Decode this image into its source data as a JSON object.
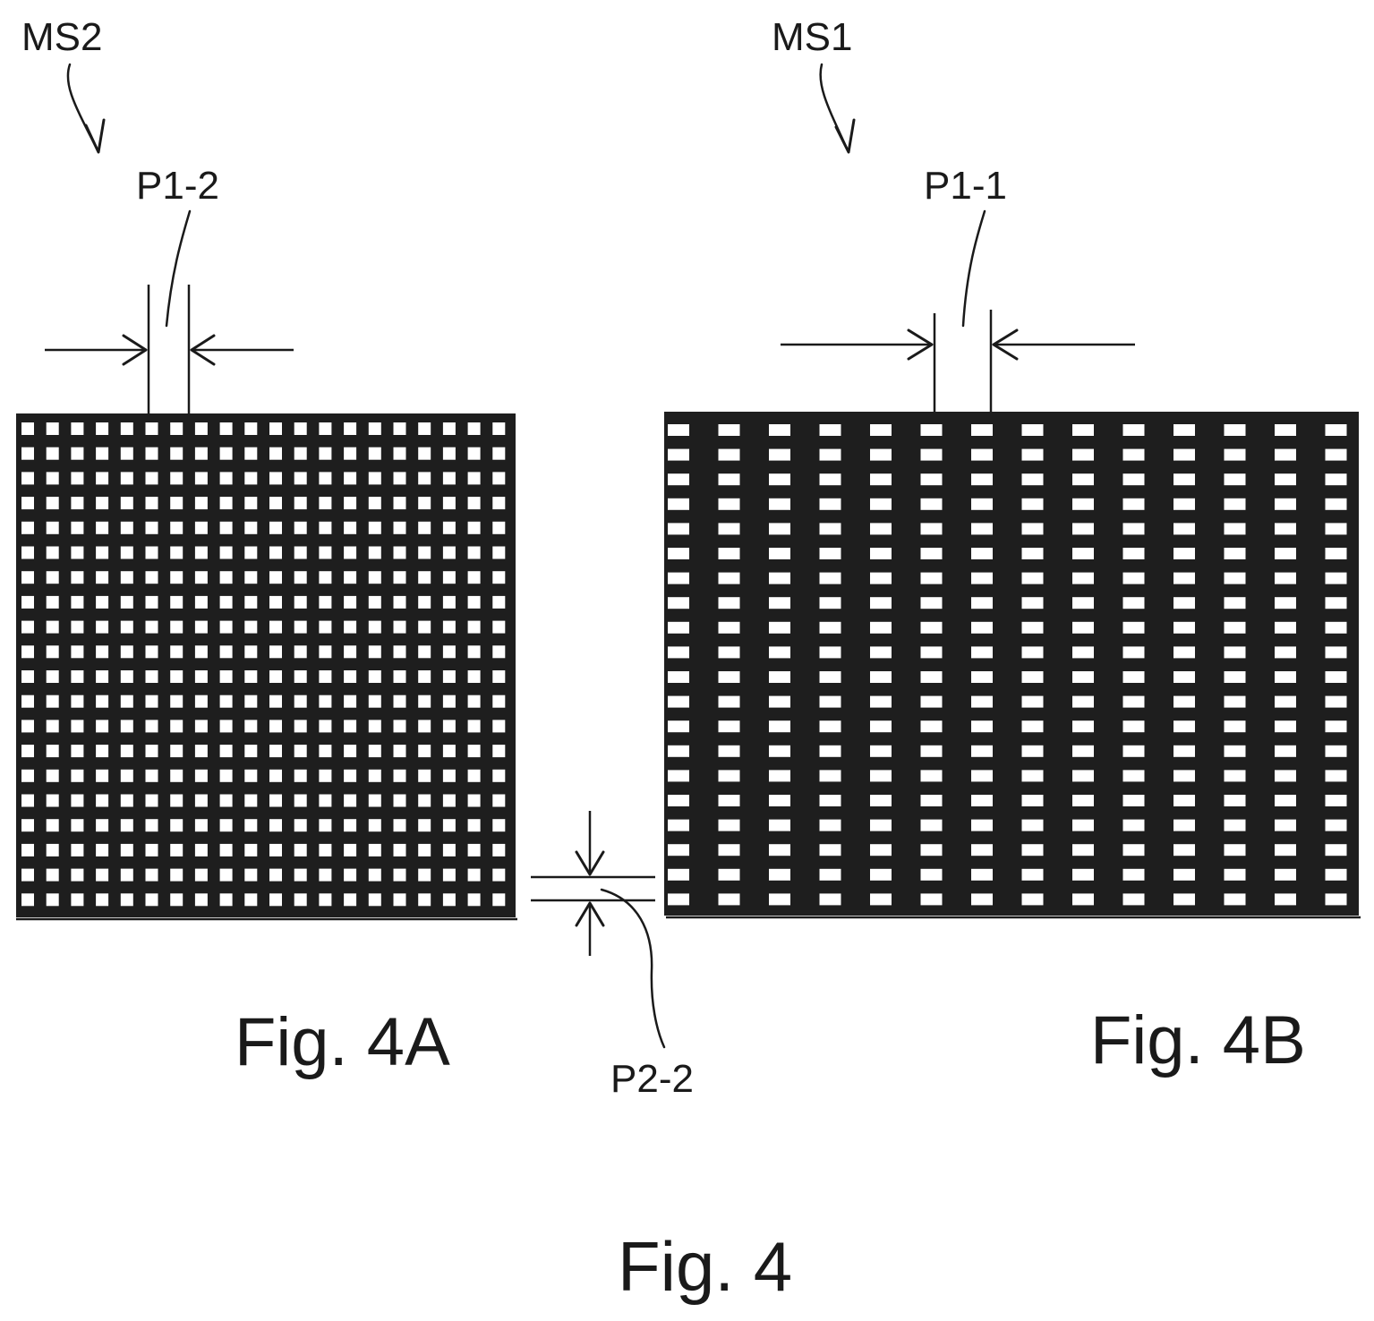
{
  "figure": {
    "title": "Fig. 4",
    "panels": [
      {
        "id": "A",
        "caption": "Fig. 4A",
        "mask_label": "MS2",
        "pitch_x_label": "P1-2",
        "pitch_y_label": "P2-2",
        "holes_x": 20,
        "holes_y": 20
      },
      {
        "id": "B",
        "caption": "Fig. 4B",
        "mask_label": "MS1",
        "pitch_x_label": "P1-1",
        "holes_x": 14,
        "holes_y": 20
      }
    ]
  },
  "colors": {
    "mesh": "#1e1e1e",
    "hole": "#ffffff",
    "line": "#1a1a1a",
    "background": "#ffffff"
  }
}
